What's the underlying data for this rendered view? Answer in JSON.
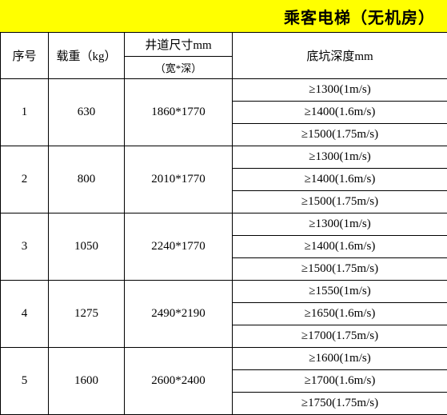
{
  "title": "乘客电梯（无机房）",
  "headers": {
    "col1": "序号",
    "col2": "载重（kg）",
    "col3_top": "井道尺寸mm",
    "col3_bottom": "（宽*深）",
    "col4": "底坑深度mm"
  },
  "rows": [
    {
      "num": "1",
      "load": "630",
      "shaft": "1860*1770",
      "pit": [
        "≥1300(1m/s)",
        "≥1400(1.6m/s)",
        "≥1500(1.75m/s)"
      ]
    },
    {
      "num": "2",
      "load": "800",
      "shaft": "2010*1770",
      "pit": [
        "≥1300(1m/s)",
        "≥1400(1.6m/s)",
        "≥1500(1.75m/s)"
      ]
    },
    {
      "num": "3",
      "load": "1050",
      "shaft": "2240*1770",
      "pit": [
        "≥1300(1m/s)",
        "≥1400(1.6m/s)",
        "≥1500(1.75m/s)"
      ]
    },
    {
      "num": "4",
      "load": "1275",
      "shaft": "2490*2190",
      "pit": [
        "≥1550(1m/s)",
        "≥1650(1.6m/s)",
        "≥1700(1.75m/s)"
      ]
    },
    {
      "num": "5",
      "load": "1600",
      "shaft": "2600*2400",
      "pit": [
        "≥1600(1m/s)",
        "≥1700(1.6m/s)",
        "≥1750(1.75m/s)"
      ]
    }
  ],
  "colors": {
    "title_bg": "#ffff00",
    "border": "#000000",
    "bg": "#ffffff"
  }
}
